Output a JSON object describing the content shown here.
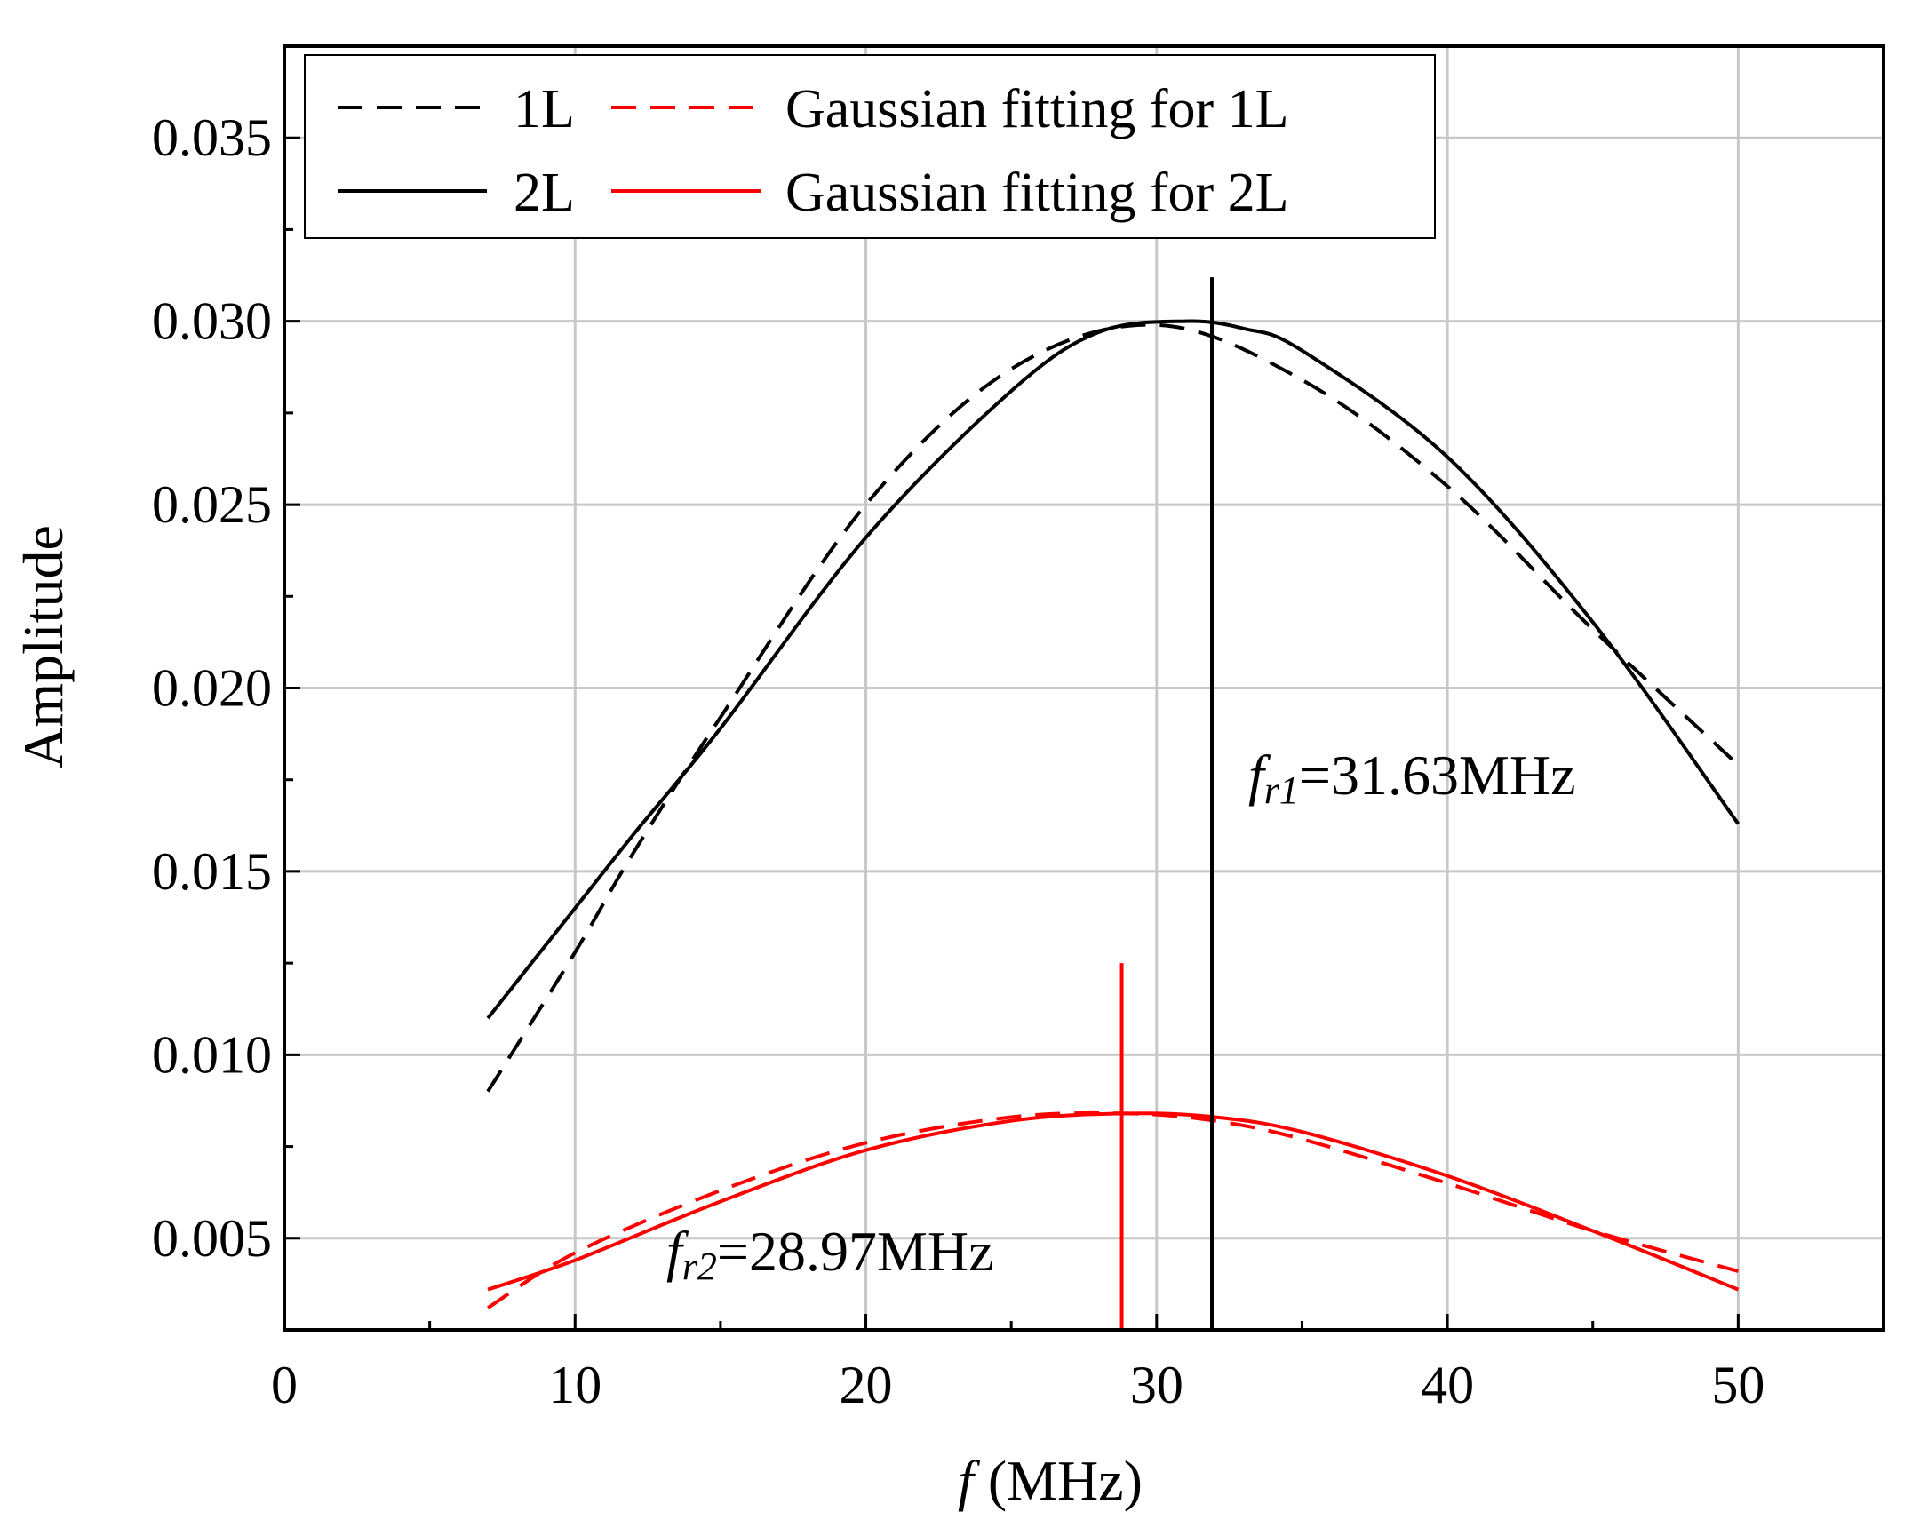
{
  "chart_data": {
    "type": "line",
    "title": "",
    "xlabel_italic": "f",
    "xlabel_rest": " (MHz)",
    "ylabel": "Amplitude",
    "xlim": [
      0,
      55
    ],
    "ylim": [
      0.0025,
      0.0375
    ],
    "x_ticks": [
      0,
      10,
      20,
      30,
      40,
      50
    ],
    "x_tick_labels": [
      "0",
      "10",
      "20",
      "30",
      "40",
      "50"
    ],
    "y_ticks": [
      0.005,
      0.01,
      0.015,
      0.02,
      0.025,
      0.03,
      0.035
    ],
    "y_tick_labels": [
      "0.005",
      "0.010",
      "0.015",
      "0.020",
      "0.025",
      "0.030",
      "0.035"
    ],
    "grid": true,
    "legend_position": "top-left",
    "series": [
      {
        "name": "1L",
        "color": "#000000",
        "dash": "dashed",
        "x": [
          7,
          10,
          12,
          15,
          20,
          25,
          30,
          35,
          40,
          45,
          50
        ],
        "y": [
          0.009,
          0.0128,
          0.0155,
          0.0192,
          0.025,
          0.0287,
          0.0299,
          0.0284,
          0.0255,
          0.0216,
          0.0179
        ]
      },
      {
        "name": "Gaussian fitting for 1L",
        "color": "#ff0000",
        "dash": "dashed",
        "x": [
          7,
          10,
          15,
          20,
          25,
          29,
          32,
          35,
          40,
          45,
          50
        ],
        "y": [
          0.0031,
          0.0046,
          0.0063,
          0.0076,
          0.0083,
          0.0084,
          0.0082,
          0.0077,
          0.0065,
          0.0052,
          0.0041
        ]
      },
      {
        "name": "2L",
        "color": "#000000",
        "dash": "solid",
        "x": [
          7,
          10,
          12,
          15,
          20,
          25,
          28,
          31,
          33,
          35,
          40,
          45,
          50
        ],
        "y": [
          0.011,
          0.014,
          0.016,
          0.0189,
          0.0241,
          0.0281,
          0.0297,
          0.03,
          0.0298,
          0.0292,
          0.0263,
          0.0218,
          0.0163
        ]
      },
      {
        "name": "Gaussian fitting for 2L",
        "color": "#ff0000",
        "dash": "solid",
        "x": [
          7,
          10,
          15,
          20,
          25,
          29,
          32,
          35,
          40,
          45,
          50
        ],
        "y": [
          0.0036,
          0.0044,
          0.006,
          0.0074,
          0.0082,
          0.0084,
          0.0083,
          0.0079,
          0.0067,
          0.0052,
          0.0036
        ]
      }
    ],
    "markers": [
      {
        "name": "fr1",
        "x": 31.9,
        "y_top": 0.0312,
        "color": "#000000"
      },
      {
        "name": "fr2",
        "x": 28.8,
        "y_top": 0.0125,
        "color": "#ff0000"
      }
    ],
    "annotations": [
      {
        "symbol": "f",
        "subscript": "r1",
        "value": "=31.63MHz"
      },
      {
        "symbol": "f",
        "subscript": "r2",
        "value": "=28.97MHz"
      }
    ]
  }
}
